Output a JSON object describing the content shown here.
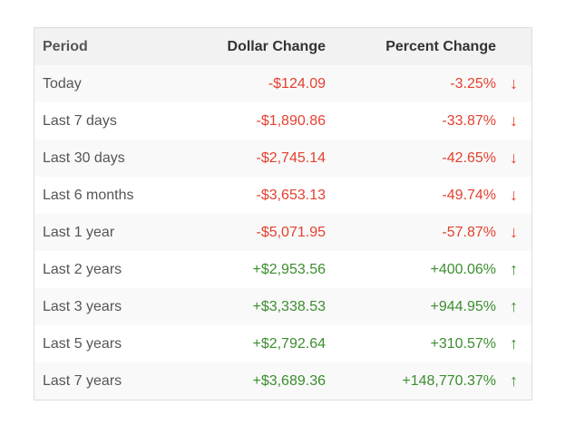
{
  "table": {
    "headers": {
      "period": "Period",
      "dollar": "Dollar Change",
      "percent": "Percent Change"
    },
    "rows": [
      {
        "period": "Today",
        "dollar": "-$124.09",
        "percent": "-3.25%",
        "arrow": "↓",
        "direction": "down"
      },
      {
        "period": "Last 7 days",
        "dollar": "-$1,890.86",
        "percent": "-33.87%",
        "arrow": "↓",
        "direction": "down"
      },
      {
        "period": "Last 30 days",
        "dollar": "-$2,745.14",
        "percent": "-42.65%",
        "arrow": "↓",
        "direction": "down"
      },
      {
        "period": "Last 6 months",
        "dollar": "-$3,653.13",
        "percent": "-49.74%",
        "arrow": "↓",
        "direction": "down"
      },
      {
        "period": "Last 1 year",
        "dollar": "-$5,071.95",
        "percent": "-57.87%",
        "arrow": "↓",
        "direction": "down"
      },
      {
        "period": "Last 2 years",
        "dollar": "+$2,953.56",
        "percent": "+400.06%",
        "arrow": "↑",
        "direction": "up"
      },
      {
        "period": "Last 3 years",
        "dollar": "+$3,338.53",
        "percent": "+944.95%",
        "arrow": "↑",
        "direction": "up"
      },
      {
        "period": "Last 5 years",
        "dollar": "+$2,792.64",
        "percent": "+310.57%",
        "arrow": "↑",
        "direction": "up"
      },
      {
        "period": "Last 7 years",
        "dollar": "+$3,689.36",
        "percent": "+148,770.37%",
        "arrow": "↑",
        "direction": "up"
      }
    ]
  },
  "colors": {
    "negative": "#e3412f",
    "positive": "#3c8d2f",
    "header_bg": "#f2f2f2",
    "stripe_bg": "#f9f9f9"
  }
}
